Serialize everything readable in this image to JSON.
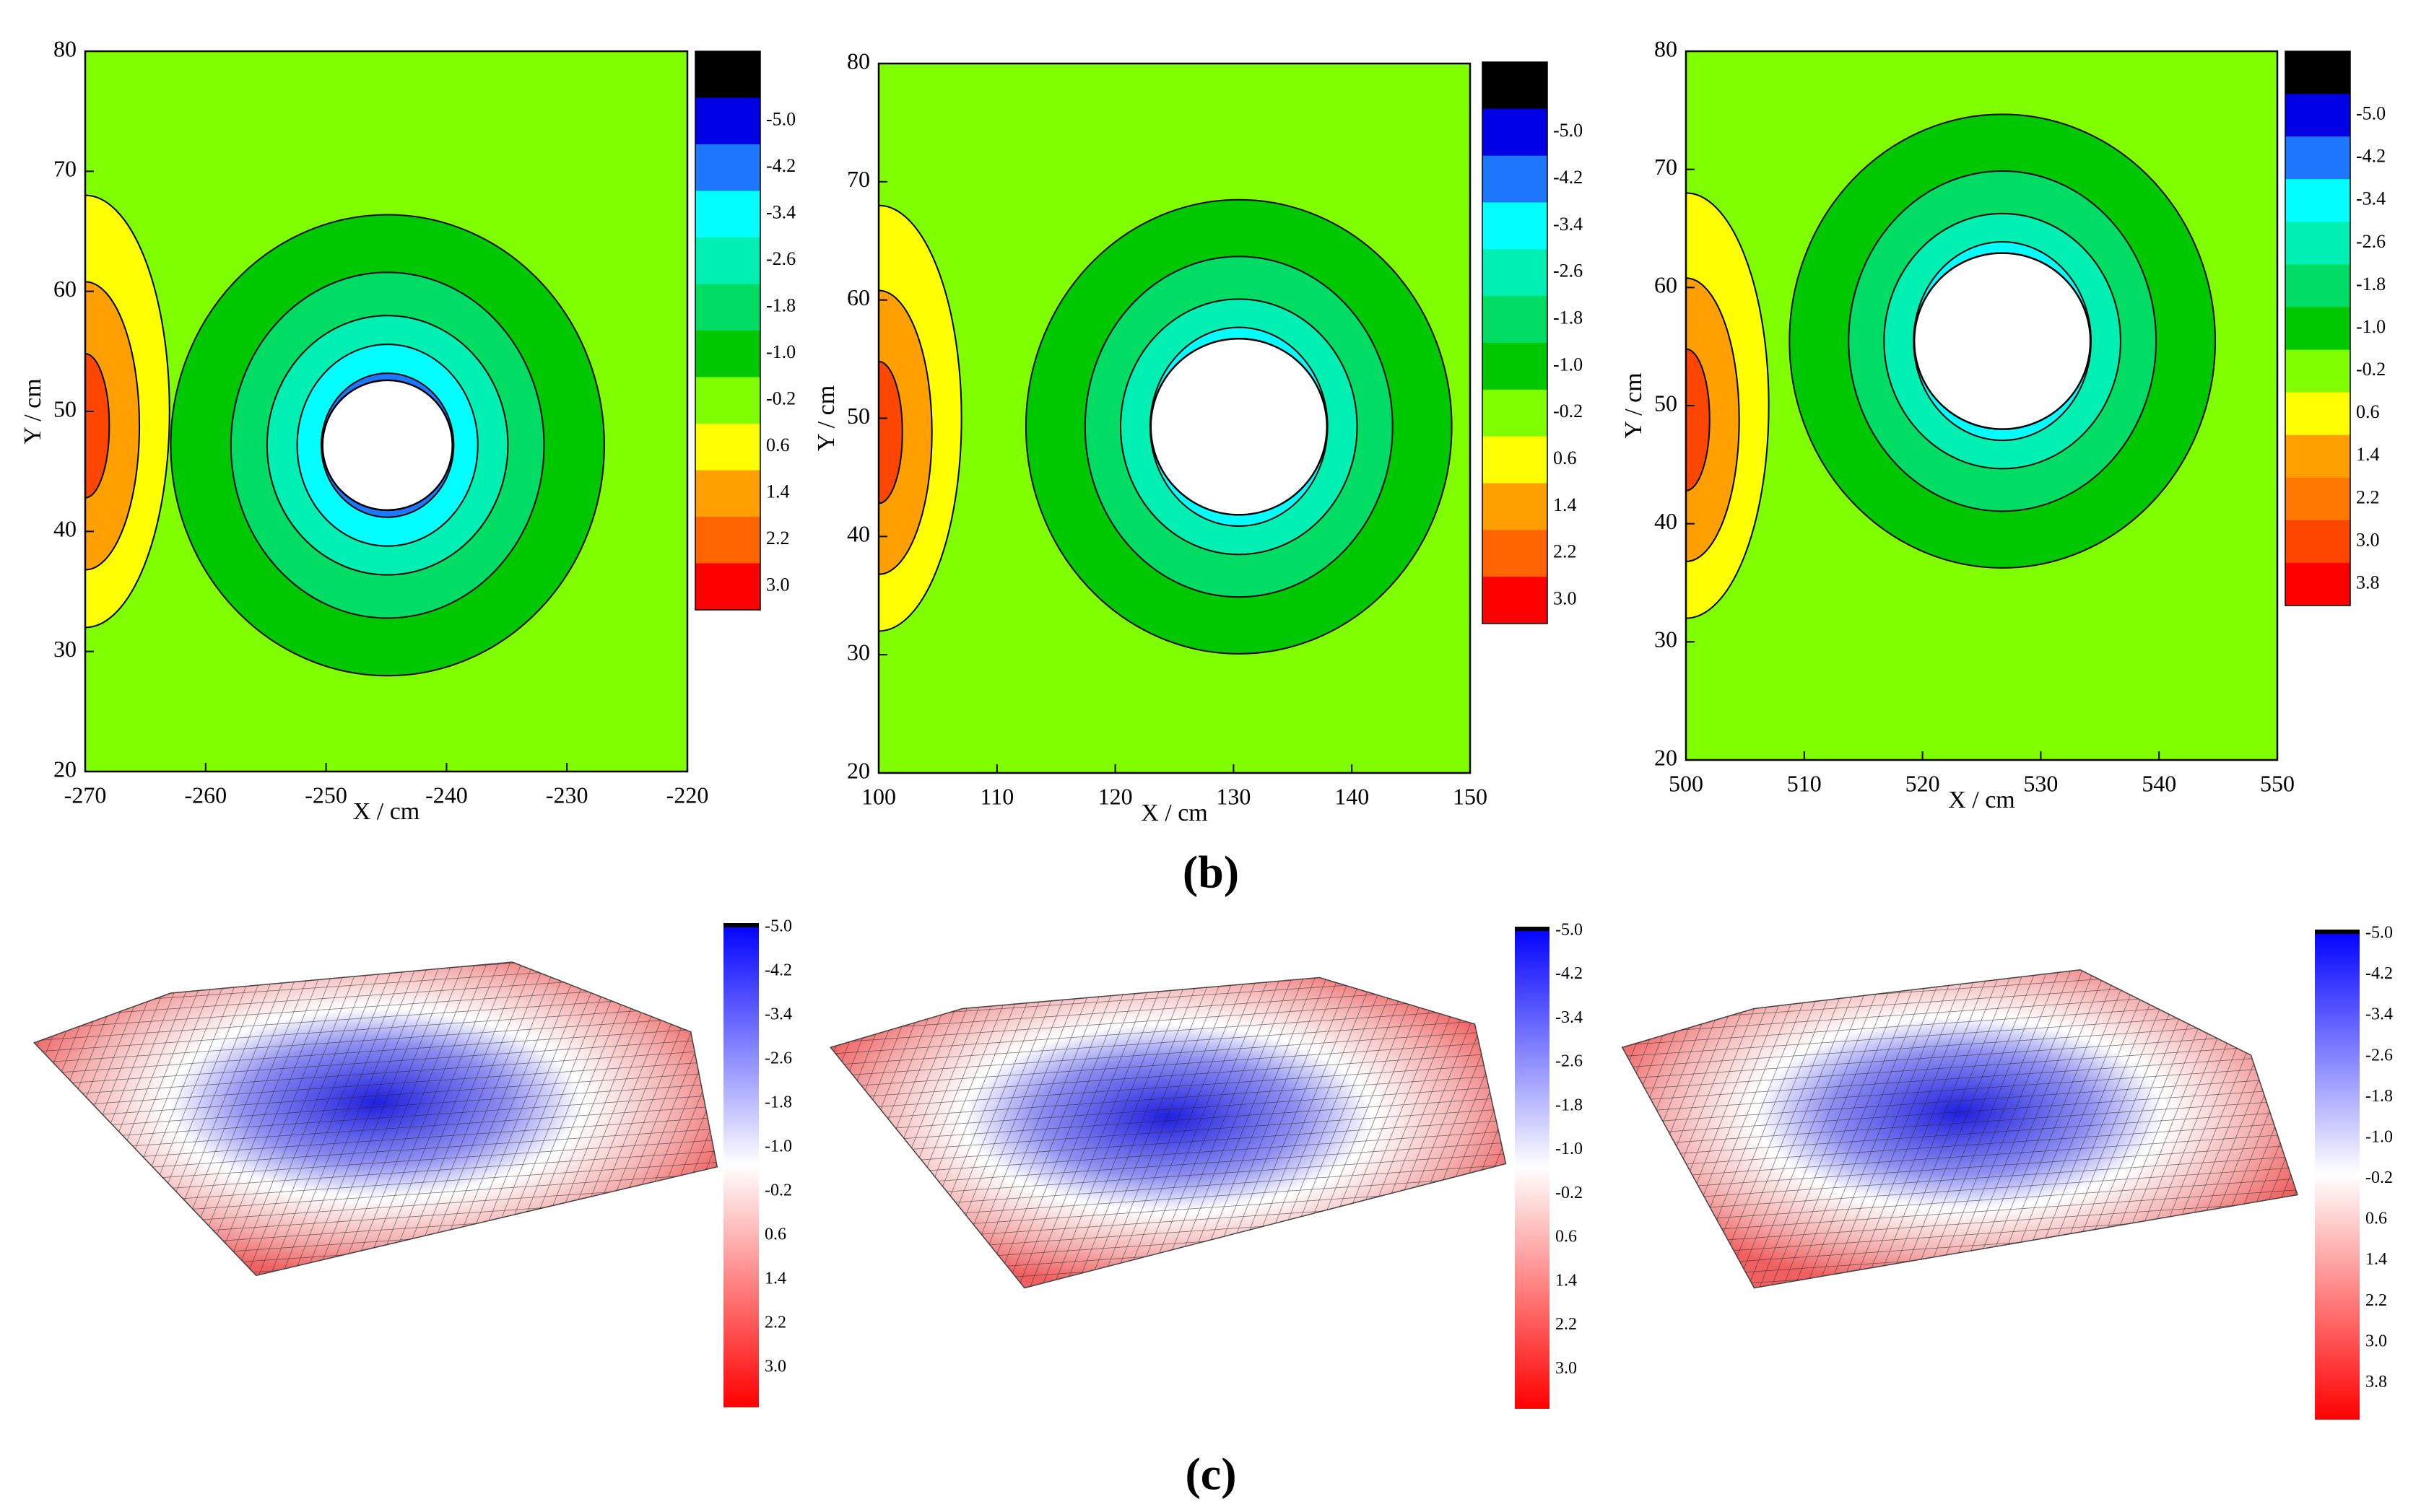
{
  "panel_labels": [
    "(b)",
    "(c)"
  ],
  "chart_data": [
    {
      "type": "contour",
      "xlabel": "X / cm",
      "ylabel": "Y / cm",
      "xlim": [
        -270,
        -220
      ],
      "xticks": [
        -270,
        -260,
        -250,
        -240,
        -230,
        -220
      ],
      "ylim": [
        20,
        80
      ],
      "yticks": [
        20,
        30,
        40,
        50,
        60,
        70,
        80
      ],
      "colorbar_ticks": [
        {
          "value": -5,
          "label": "-5.0"
        },
        -4.2,
        -3.4,
        -2.6,
        -1.8,
        {
          "value": -1,
          "label": "-1.0"
        },
        -0.2,
        0.6,
        1.4,
        2.2,
        {
          "value": 3,
          "label": "3.0"
        }
      ],
      "colors": [
        "#000000",
        "#0000e6",
        "#1e78ff",
        "#00ffff",
        "#00f0b4",
        "#00dc64",
        "#00c800",
        "#80ff00",
        "#ffff00",
        "#ffa000",
        "#ff6400",
        "#ff0000"
      ]
    },
    {
      "type": "contour",
      "xlabel": "X / cm",
      "ylabel": "Y / cm",
      "xlim": [
        100,
        150
      ],
      "xticks": [
        100,
        110,
        120,
        130,
        140,
        150
      ],
      "ylim": [
        20,
        80
      ],
      "yticks": [
        20,
        30,
        40,
        50,
        60,
        70,
        80
      ],
      "colorbar_ticks": [
        {
          "value": -5,
          "label": "-5.0"
        },
        -4.2,
        -3.4,
        -2.6,
        -1.8,
        {
          "value": -1,
          "label": "-1.0"
        },
        -0.2,
        0.6,
        1.4,
        2.2,
        {
          "value": 3,
          "label": "3.0"
        }
      ],
      "colors": [
        "#000000",
        "#0000e6",
        "#1e78ff",
        "#00ffff",
        "#00f0b4",
        "#00dc64",
        "#00c800",
        "#80ff00",
        "#ffff00",
        "#ffa000",
        "#ff6400",
        "#ff0000"
      ]
    },
    {
      "type": "contour",
      "xlabel": "X / cm",
      "ylabel": "Y / cm",
      "xlim": [
        500,
        550
      ],
      "xticks": [
        500,
        510,
        520,
        530,
        540,
        550
      ],
      "ylim": [
        20,
        80
      ],
      "yticks": [
        20,
        30,
        40,
        50,
        60,
        70,
        80
      ],
      "colorbar_ticks": [
        {
          "value": -5,
          "label": "-5.0"
        },
        -4.2,
        -3.4,
        -2.6,
        -1.8,
        {
          "value": -1,
          "label": "-1.0"
        },
        -0.2,
        0.6,
        1.4,
        2.2,
        {
          "value": 3,
          "label": "3.0"
        },
        3.8
      ],
      "colors": [
        "#000000",
        "#0000e6",
        "#1e78ff",
        "#00ffff",
        "#00f0b4",
        "#00dc64",
        "#00c800",
        "#80ff00",
        "#ffff00",
        "#ffa000",
        "#ff7800",
        "#ff4600",
        "#ff0000"
      ]
    },
    {
      "type": "surface",
      "colorbar_ticks": [
        {
          "value": -5,
          "label": "-5.0"
        },
        -4.2,
        -3.4,
        -2.6,
        -1.8,
        {
          "value": -1,
          "label": "-1.0"
        },
        -0.2,
        0.6,
        1.4,
        2.2,
        {
          "value": 3,
          "label": "3.0"
        }
      ]
    },
    {
      "type": "surface",
      "colorbar_ticks": [
        {
          "value": -5,
          "label": "-5.0"
        },
        -4.2,
        -3.4,
        -2.6,
        -1.8,
        {
          "value": -1,
          "label": "-1.0"
        },
        -0.2,
        0.6,
        1.4,
        2.2,
        {
          "value": 3,
          "label": "3.0"
        }
      ]
    },
    {
      "type": "surface",
      "colorbar_ticks": [
        {
          "value": -5,
          "label": "-5.0"
        },
        -4.2,
        -3.4,
        -2.6,
        -1.8,
        {
          "value": -1,
          "label": "-1.0"
        },
        -0.2,
        0.6,
        1.4,
        2.2,
        {
          "value": 3,
          "label": "3.0"
        },
        3.8
      ]
    }
  ]
}
